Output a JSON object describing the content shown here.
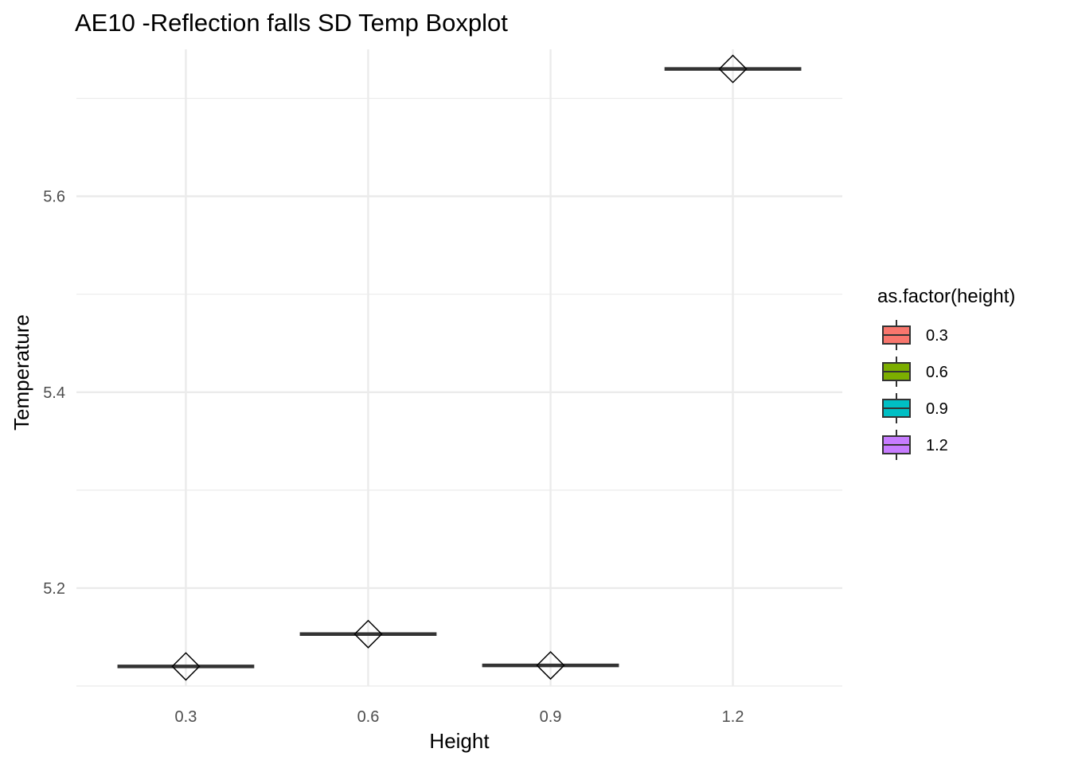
{
  "chart_data": {
    "type": "boxplot",
    "title": "AE10 -Reflection falls SD Temp Boxplot",
    "xlabel": "Height",
    "ylabel": "Temperature",
    "categories": [
      "0.3",
      "0.6",
      "0.9",
      "1.2"
    ],
    "ylim": [
      5.1,
      5.75
    ],
    "y_ticks": [
      5.2,
      5.4,
      5.6
    ],
    "y_tick_labels": [
      "5.2",
      "5.4",
      "5.6"
    ],
    "grid": true,
    "series": [
      {
        "category": "0.3",
        "median": 5.12,
        "mean": 5.12,
        "fill": "#F8766D"
      },
      {
        "category": "0.6",
        "median": 5.153,
        "mean": 5.153,
        "fill": "#7CAE00"
      },
      {
        "category": "0.9",
        "median": 5.121,
        "mean": 5.121,
        "fill": "#00BFC4"
      },
      {
        "category": "1.2",
        "median": 5.73,
        "mean": 5.73,
        "fill": "#C77CFF"
      }
    ],
    "legend": {
      "title": "as.factor(height)",
      "position": "right",
      "entries": [
        {
          "label": "0.3",
          "color": "#F8766D"
        },
        {
          "label": "0.6",
          "color": "#7CAE00"
        },
        {
          "label": "0.9",
          "color": "#00BFC4"
        },
        {
          "label": "1.2",
          "color": "#C77CFF"
        }
      ]
    },
    "colors": {
      "grid": "#ebebeb",
      "median_line": "#333333",
      "mean_marker": "#000000"
    }
  }
}
